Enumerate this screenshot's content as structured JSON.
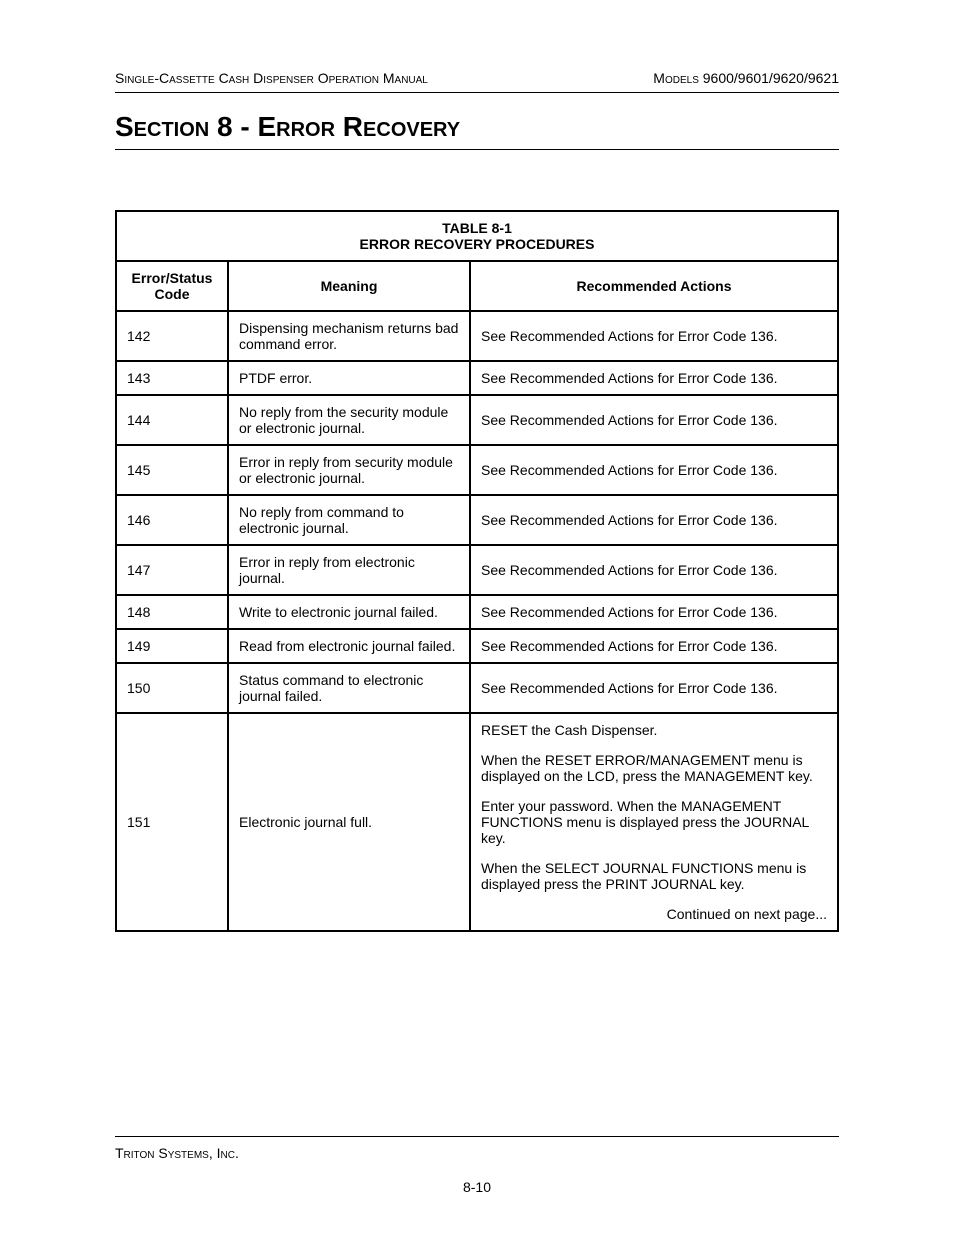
{
  "header": {
    "left": "Single-Cassette Cash Dispenser Operation Manual",
    "right": "Models 9600/9601/9620/9621"
  },
  "section_title": "Section 8 - Error Recovery",
  "table": {
    "title_line1": "TABLE 8-1",
    "title_line2": "ERROR RECOVERY PROCEDURES",
    "columns": {
      "code": "Error/Status Code",
      "meaning": "Meaning",
      "actions": "Recommended Actions"
    },
    "rows": [
      {
        "code": "142",
        "meaning": "Dispensing mechanism returns bad command error.",
        "actions": [
          "See Recommended Actions for Error Code 136."
        ]
      },
      {
        "code": "143",
        "meaning": "PTDF error.",
        "actions": [
          "See Recommended Actions for Error Code 136."
        ]
      },
      {
        "code": "144",
        "meaning": "No reply from the security module or electronic journal.",
        "actions": [
          "See Recommended Actions for Error Code 136."
        ]
      },
      {
        "code": "145",
        "meaning": "Error in reply from security module or electronic journal.",
        "actions": [
          "See Recommended Actions for Error Code 136."
        ]
      },
      {
        "code": "146",
        "meaning": "No reply from command to electronic journal.",
        "actions": [
          "See Recommended Actions for Error Code 136."
        ]
      },
      {
        "code": "147",
        "meaning": "Error in reply from electronic journal.",
        "actions": [
          "See Recommended Actions for Error Code 136."
        ]
      },
      {
        "code": "148",
        "meaning": "Write to electronic journal failed.",
        "actions": [
          "See Recommended Actions for Error Code 136."
        ]
      },
      {
        "code": "149",
        "meaning": "Read from electronic journal failed.",
        "actions": [
          "See Recommended Actions for Error Code 136."
        ]
      },
      {
        "code": "150",
        "meaning": "Status command to electronic journal failed.",
        "actions": [
          "See Recommended Actions for Error Code 136."
        ]
      },
      {
        "code": "151",
        "meaning": "Electronic journal full.",
        "actions": [
          "RESET the Cash Dispenser.",
          "When the RESET ERROR/MANAGEMENT menu is displayed on the LCD, press the MANAGEMENT key.",
          "Enter your password. When the MANAGEMENT FUNCTIONS menu is displayed press the JOURNAL key.",
          "When the SELECT JOURNAL FUNCTIONS menu is displayed press the PRINT JOURNAL key."
        ],
        "continued": "Continued on next page..."
      }
    ]
  },
  "footer": {
    "company": "Triton Systems, Inc.",
    "page": "8-10"
  }
}
